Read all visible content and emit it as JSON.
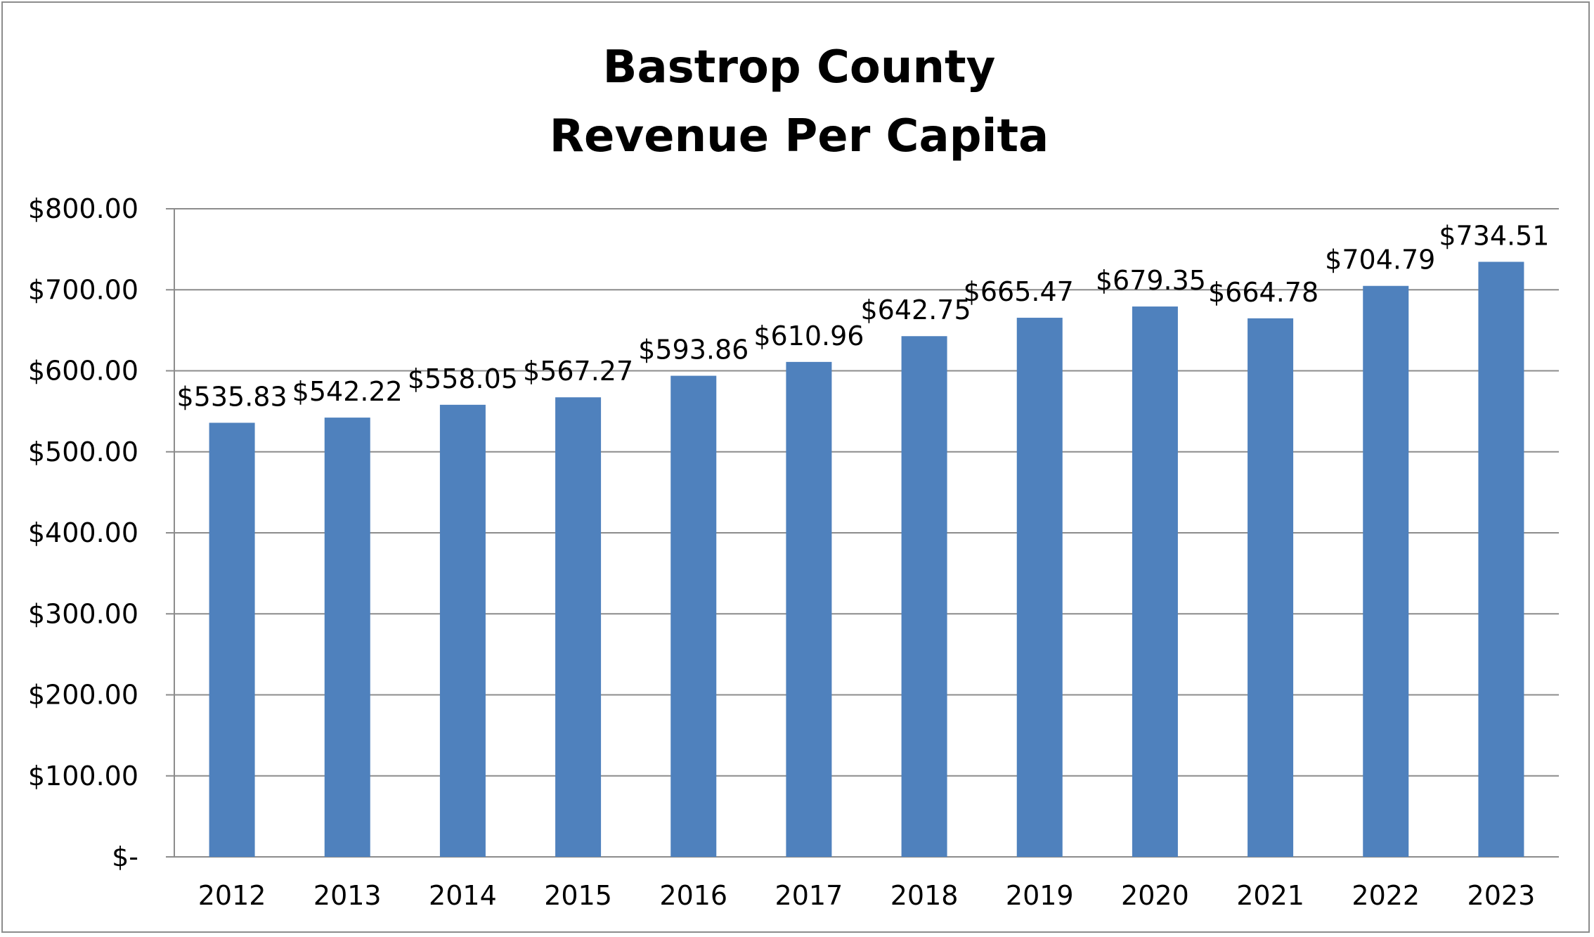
{
  "chart_data": {
    "type": "bar",
    "title_lines": [
      "Bastrop County",
      "Revenue  Per Capita"
    ],
    "categories": [
      "2012",
      "2013",
      "2014",
      "2015",
      "2016",
      "2017",
      "2018",
      "2019",
      "2020",
      "2021",
      "2022",
      "2023"
    ],
    "values": [
      535.83,
      542.22,
      558.05,
      567.27,
      593.86,
      610.96,
      642.75,
      665.47,
      679.35,
      664.78,
      704.79,
      734.51
    ],
    "data_labels": [
      "$535.83",
      "$542.22",
      "$558.05",
      "$567.27",
      "$593.86",
      "$610.96",
      "$642.75",
      "$665.47",
      "$679.35",
      "$664.78",
      "$704.79",
      "$734.51"
    ],
    "y_ticks": [
      0,
      100,
      200,
      300,
      400,
      500,
      600,
      700,
      800
    ],
    "y_tick_labels": [
      "$-",
      "$100.00",
      "$200.00",
      "$300.00",
      "$400.00",
      "$500.00",
      "$600.00",
      "$700.00",
      "$800.00"
    ],
    "ylim": [
      0,
      800
    ],
    "xlabel": "",
    "ylabel": "",
    "grid": true,
    "legend": "none",
    "bar_color": "#4f81bd",
    "grid_color": "#8c8c8c",
    "border_color": "#8c8c8c"
  }
}
